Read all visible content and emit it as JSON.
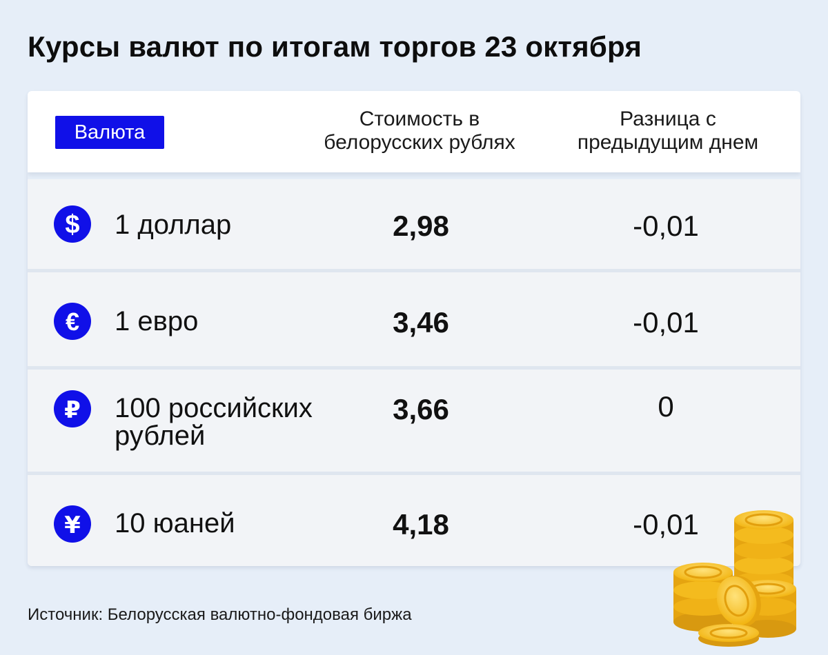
{
  "title": "Курсы валют по итогам торгов 23 октября",
  "header": {
    "currency_label": "Валюта",
    "cost_line1": "Стоимость в",
    "cost_line2": "белорусских рублях",
    "diff_line1": "Разница с",
    "diff_line2": "предыдущим днем"
  },
  "rows": [
    {
      "icon": "dollar-icon",
      "name_line1": "1 доллар",
      "name_line2": "",
      "value": "2,98",
      "diff": "-0,01"
    },
    {
      "icon": "euro-icon",
      "name_line1": "1 евро",
      "name_line2": "",
      "value": "3,46",
      "diff": "-0,01"
    },
    {
      "icon": "ruble-icon",
      "name_line1": "100 российских",
      "name_line2": "рублей",
      "value": "3,66",
      "diff": "0"
    },
    {
      "icon": "yuan-icon",
      "name_line1": "10 юаней",
      "name_line2": "",
      "value": "4,18",
      "diff": "-0,01"
    }
  ],
  "source": "Источник: Белорусская валютно-фондовая биржа",
  "colors": {
    "accent": "#1010e8",
    "background": "#e6eef8",
    "row_bg": "#f2f4f7"
  }
}
